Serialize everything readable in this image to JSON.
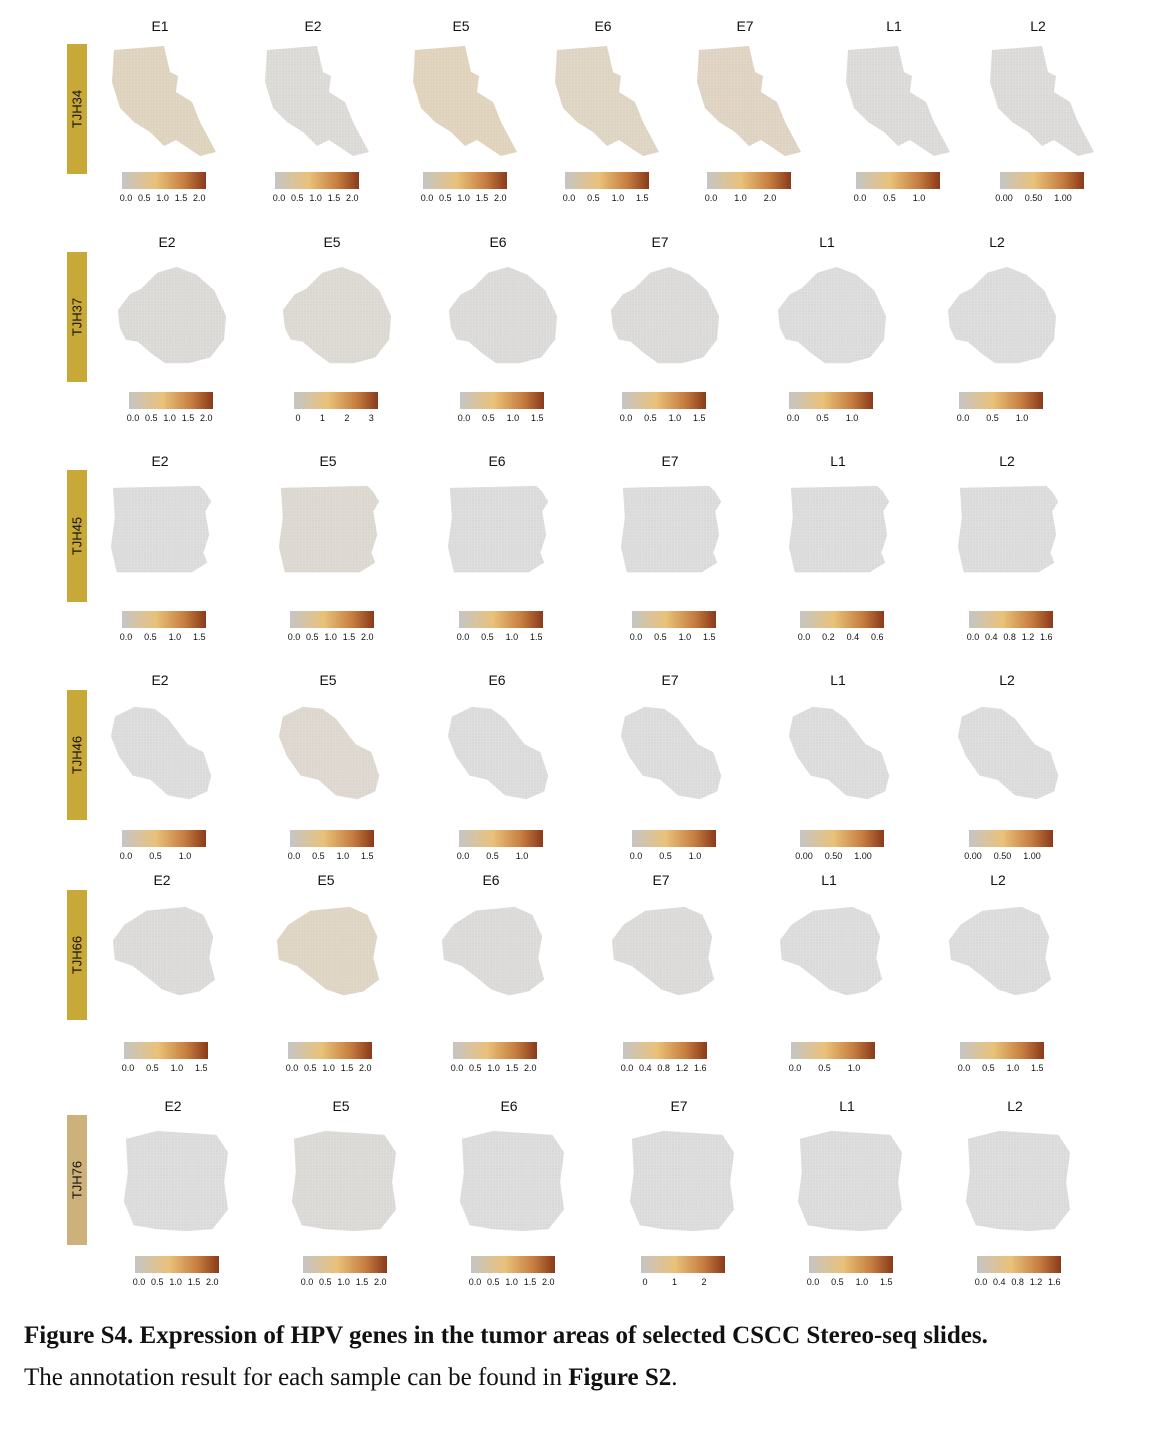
{
  "figure": {
    "rows": [
      {
        "sample": "TJH34",
        "panels": [
          {
            "gene": "E1",
            "ticks": [
              "0.0",
              "0.5",
              "1.0",
              "1.5",
              "2.0"
            ],
            "tint": 0.55
          },
          {
            "gene": "E2",
            "ticks": [
              "0.0",
              "0.5",
              "1.0",
              "1.5",
              "2.0"
            ],
            "tint": 0.1
          },
          {
            "gene": "E5",
            "ticks": [
              "0.0",
              "0.5",
              "1.0",
              "1.5",
              "2.0"
            ],
            "tint": 0.6
          },
          {
            "gene": "E6",
            "ticks": [
              "0.0",
              "0.5",
              "1.0",
              "1.5"
            ],
            "tint": 0.45
          },
          {
            "gene": "E7",
            "ticks": [
              "0.0",
              "1.0",
              "2.0"
            ],
            "tint": 0.5
          },
          {
            "gene": "L1",
            "ticks": [
              "0.0",
              "0.5",
              "1.0"
            ],
            "tint": 0.05
          },
          {
            "gene": "L2",
            "ticks": [
              "0.00",
              "0.50",
              "1.00"
            ],
            "tint": 0.05
          }
        ]
      },
      {
        "sample": "TJH37",
        "panels": [
          {
            "gene": "E2",
            "ticks": [
              "0.0",
              "0.5",
              "1.0",
              "1.5",
              "2.0"
            ],
            "tint": 0.08
          },
          {
            "gene": "E5",
            "ticks": [
              "0",
              "1",
              "2",
              "3"
            ],
            "tint": 0.15
          },
          {
            "gene": "E6",
            "ticks": [
              "0.0",
              "0.5",
              "1.0",
              "1.5"
            ],
            "tint": 0.05
          },
          {
            "gene": "E7",
            "ticks": [
              "0.0",
              "0.5",
              "1.0",
              "1.5"
            ],
            "tint": 0.05
          },
          {
            "gene": "L1",
            "ticks": [
              "0.0",
              "0.5",
              "1.0"
            ],
            "tint": 0.03
          },
          {
            "gene": "L2",
            "ticks": [
              "0.0",
              "0.5",
              "1.0"
            ],
            "tint": 0.03
          }
        ]
      },
      {
        "sample": "TJH45",
        "panels": [
          {
            "gene": "E2",
            "ticks": [
              "0.0",
              "0.5",
              "1.0",
              "1.5"
            ],
            "tint": 0.02
          },
          {
            "gene": "E5",
            "ticks": [
              "0.0",
              "0.5",
              "1.0",
              "1.5",
              "2.0"
            ],
            "tint": 0.2
          },
          {
            "gene": "E6",
            "ticks": [
              "0.0",
              "0.5",
              "1.0",
              "1.5"
            ],
            "tint": 0.02
          },
          {
            "gene": "E7",
            "ticks": [
              "0.0",
              "0.5",
              "1.0",
              "1.5"
            ],
            "tint": 0.02
          },
          {
            "gene": "L1",
            "ticks": [
              "0.0",
              "0.2",
              "0.4",
              "0.6"
            ],
            "tint": 0.02
          },
          {
            "gene": "L2",
            "ticks": [
              "0.0",
              "0.4",
              "0.8",
              "1.2",
              "1.6"
            ],
            "tint": 0.02
          }
        ]
      },
      {
        "sample": "TJH46",
        "panels": [
          {
            "gene": "E2",
            "ticks": [
              "0.0",
              "0.5",
              "1.0"
            ],
            "tint": 0.03
          },
          {
            "gene": "E5",
            "ticks": [
              "0.0",
              "0.5",
              "1.0",
              "1.5"
            ],
            "tint": 0.25
          },
          {
            "gene": "E6",
            "ticks": [
              "0.0",
              "0.5",
              "1.0"
            ],
            "tint": 0.03
          },
          {
            "gene": "E7",
            "ticks": [
              "0.0",
              "0.5",
              "1.0"
            ],
            "tint": 0.03
          },
          {
            "gene": "L1",
            "ticks": [
              "0.00",
              "0.50",
              "1.00"
            ],
            "tint": 0.02
          },
          {
            "gene": "L2",
            "ticks": [
              "0.00",
              "0.50",
              "1.00"
            ],
            "tint": 0.02
          }
        ]
      },
      {
        "sample": "TJH66",
        "panels": [
          {
            "gene": "E2",
            "ticks": [
              "0.0",
              "0.5",
              "1.0",
              "1.5"
            ],
            "tint": 0.05
          },
          {
            "gene": "E5",
            "ticks": [
              "0.0",
              "0.5",
              "1.0",
              "1.5",
              "2.0"
            ],
            "tint": 0.45
          },
          {
            "gene": "E6",
            "ticks": [
              "0.0",
              "0.5",
              "1.0",
              "1.5",
              "2.0"
            ],
            "tint": 0.05
          },
          {
            "gene": "E7",
            "ticks": [
              "0.0",
              "0.4",
              "0.8",
              "1.2",
              "1.6"
            ],
            "tint": 0.05
          },
          {
            "gene": "L1",
            "ticks": [
              "0.0",
              "0.5",
              "1.0"
            ],
            "tint": 0.03
          },
          {
            "gene": "L2",
            "ticks": [
              "0.0",
              "0.5",
              "1.0",
              "1.5"
            ],
            "tint": 0.03
          }
        ]
      },
      {
        "sample": "TJH76",
        "panels": [
          {
            "gene": "E2",
            "ticks": [
              "0.0",
              "0.5",
              "1.0",
              "1.5",
              "2.0"
            ],
            "tint": 0.03
          },
          {
            "gene": "E5",
            "ticks": [
              "0.0",
              "0.5",
              "1.0",
              "1.5",
              "2.0"
            ],
            "tint": 0.08
          },
          {
            "gene": "E6",
            "ticks": [
              "0.0",
              "0.5",
              "1.0",
              "1.5",
              "2.0"
            ],
            "tint": 0.03
          },
          {
            "gene": "E7",
            "ticks": [
              "0",
              "1",
              "2"
            ],
            "tint": 0.03
          },
          {
            "gene": "L1",
            "ticks": [
              "0.0",
              "0.5",
              "1.0",
              "1.5"
            ],
            "tint": 0.03
          },
          {
            "gene": "L2",
            "ticks": [
              "0.0",
              "0.4",
              "0.8",
              "1.2",
              "1.6"
            ],
            "tint": 0.03
          }
        ]
      }
    ],
    "colorbar_colors": [
      "#c5c5c5",
      "#e9c27a",
      "#c57c3f",
      "#8a3a1a"
    ],
    "label_color": "#c8a938",
    "label_color_last": "#cdb17a"
  },
  "caption": {
    "title": "Figure S4. Expression of HPV genes in the tumor areas of selected CSCC Stereo-seq slides.",
    "body_prefix": "The annotation result for each sample can be found in ",
    "body_ref": "Figure S2",
    "body_suffix": "."
  }
}
